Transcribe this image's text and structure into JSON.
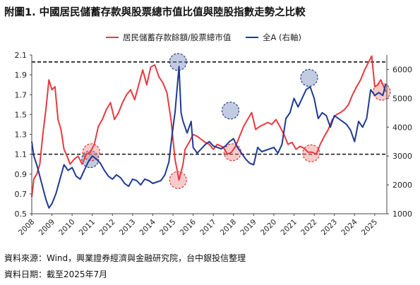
{
  "title": "附圖1. 中國居民儲蓄存款與股票總市值比值與陸股指數走勢之比較",
  "footnote_source": "資料來源：Wind，興業證券經濟與金融研究院，台中銀投信整理",
  "footnote_date": "資料日期：截至2025年7月",
  "chart_data": {
    "type": "line",
    "x_labels": [
      "2008",
      "2009",
      "2010",
      "2011",
      "2012",
      "2013",
      "2014",
      "2015",
      "2016",
      "2017",
      "2018",
      "2019",
      "2020",
      "2021",
      "2022",
      "2023",
      "2024",
      "2025"
    ],
    "x_range": [
      2008.0,
      2025.6
    ],
    "left_axis": {
      "ticks": [
        "0.5",
        "0.7",
        "0.9",
        "1.1",
        "1.3",
        "1.5",
        "1.7",
        "1.9",
        "2.1"
      ],
      "min": 0.5,
      "max": 2.1
    },
    "right_axis": {
      "ticks": [
        "1000",
        "2000",
        "3000",
        "4000",
        "5000",
        "6000"
      ],
      "min": 1000,
      "max": 6500
    },
    "reference_lines": [
      2.03,
      1.1
    ],
    "series": [
      {
        "name": "居民儲蓄存款餘額/股票總市值",
        "axis": "left",
        "color": "#e8393f",
        "points": [
          [
            2008.0,
            0.67
          ],
          [
            2008.1,
            0.85
          ],
          [
            2008.25,
            0.9
          ],
          [
            2008.4,
            1.0
          ],
          [
            2008.55,
            1.3
          ],
          [
            2008.7,
            1.55
          ],
          [
            2008.85,
            1.85
          ],
          [
            2009.0,
            1.75
          ],
          [
            2009.15,
            1.78
          ],
          [
            2009.3,
            1.45
          ],
          [
            2009.45,
            1.35
          ],
          [
            2009.6,
            1.15
          ],
          [
            2009.75,
            1.08
          ],
          [
            2009.9,
            1.0
          ],
          [
            2010.1,
            1.05
          ],
          [
            2010.3,
            1.08
          ],
          [
            2010.5,
            1.0
          ],
          [
            2010.7,
            1.1
          ],
          [
            2010.9,
            1.12
          ],
          [
            2011.1,
            1.2
          ],
          [
            2011.3,
            1.38
          ],
          [
            2011.5,
            1.45
          ],
          [
            2011.7,
            1.55
          ],
          [
            2011.9,
            1.62
          ],
          [
            2012.1,
            1.45
          ],
          [
            2012.3,
            1.52
          ],
          [
            2012.5,
            1.62
          ],
          [
            2012.7,
            1.7
          ],
          [
            2012.9,
            1.75
          ],
          [
            2013.1,
            1.65
          ],
          [
            2013.3,
            1.8
          ],
          [
            2013.5,
            1.95
          ],
          [
            2013.7,
            1.8
          ],
          [
            2013.9,
            1.98
          ],
          [
            2014.1,
            2.0
          ],
          [
            2014.3,
            1.88
          ],
          [
            2014.5,
            1.82
          ],
          [
            2014.7,
            1.72
          ],
          [
            2014.9,
            1.45
          ],
          [
            2015.0,
            1.25
          ],
          [
            2015.1,
            1.05
          ],
          [
            2015.3,
            0.84
          ],
          [
            2015.5,
            1.0
          ],
          [
            2015.6,
            1.15
          ],
          [
            2015.8,
            1.22
          ],
          [
            2016.0,
            1.3
          ],
          [
            2016.2,
            1.28
          ],
          [
            2016.4,
            1.25
          ],
          [
            2016.6,
            1.22
          ],
          [
            2016.8,
            1.2
          ],
          [
            2017.0,
            1.15
          ],
          [
            2017.2,
            1.2
          ],
          [
            2017.5,
            1.17
          ],
          [
            2017.7,
            1.1
          ],
          [
            2017.9,
            1.12
          ],
          [
            2018.1,
            1.18
          ],
          [
            2018.3,
            1.28
          ],
          [
            2018.5,
            1.38
          ],
          [
            2018.7,
            1.45
          ],
          [
            2018.9,
            1.52
          ],
          [
            2019.1,
            1.35
          ],
          [
            2019.3,
            1.38
          ],
          [
            2019.5,
            1.4
          ],
          [
            2019.7,
            1.42
          ],
          [
            2019.9,
            1.4
          ],
          [
            2020.1,
            1.45
          ],
          [
            2020.3,
            1.38
          ],
          [
            2020.5,
            1.3
          ],
          [
            2020.7,
            1.2
          ],
          [
            2020.9,
            1.22
          ],
          [
            2021.1,
            1.15
          ],
          [
            2021.3,
            1.18
          ],
          [
            2021.5,
            1.16
          ],
          [
            2021.7,
            1.12
          ],
          [
            2021.9,
            1.12
          ],
          [
            2022.1,
            1.1
          ],
          [
            2022.3,
            1.2
          ],
          [
            2022.5,
            1.28
          ],
          [
            2022.7,
            1.35
          ],
          [
            2022.9,
            1.45
          ],
          [
            2023.1,
            1.5
          ],
          [
            2023.3,
            1.52
          ],
          [
            2023.5,
            1.55
          ],
          [
            2023.7,
            1.6
          ],
          [
            2023.9,
            1.7
          ],
          [
            2024.1,
            1.78
          ],
          [
            2024.3,
            1.85
          ],
          [
            2024.5,
            1.95
          ],
          [
            2024.7,
            2.03
          ],
          [
            2024.85,
            2.09
          ],
          [
            2025.0,
            1.78
          ],
          [
            2025.15,
            1.8
          ],
          [
            2025.3,
            1.85
          ],
          [
            2025.45,
            1.78
          ],
          [
            2025.55,
            1.73
          ]
        ]
      },
      {
        "name": "全A (右軸)",
        "axis": "right",
        "color": "#1f3a93",
        "points": [
          [
            2008.0,
            3500
          ],
          [
            2008.1,
            3000
          ],
          [
            2008.25,
            2700
          ],
          [
            2008.4,
            2300
          ],
          [
            2008.55,
            1900
          ],
          [
            2008.7,
            1500
          ],
          [
            2008.85,
            1200
          ],
          [
            2009.0,
            1350
          ],
          [
            2009.2,
            1700
          ],
          [
            2009.4,
            2200
          ],
          [
            2009.6,
            2700
          ],
          [
            2009.8,
            2500
          ],
          [
            2010.0,
            2600
          ],
          [
            2010.2,
            2300
          ],
          [
            2010.4,
            2200
          ],
          [
            2010.6,
            2500
          ],
          [
            2010.8,
            2800
          ],
          [
            2011.0,
            3000
          ],
          [
            2011.2,
            2900
          ],
          [
            2011.4,
            2750
          ],
          [
            2011.6,
            2500
          ],
          [
            2011.8,
            2300
          ],
          [
            2012.0,
            2200
          ],
          [
            2012.2,
            2350
          ],
          [
            2012.4,
            2250
          ],
          [
            2012.6,
            2050
          ],
          [
            2012.8,
            1950
          ],
          [
            2013.0,
            2200
          ],
          [
            2013.2,
            2150
          ],
          [
            2013.4,
            2000
          ],
          [
            2013.6,
            2200
          ],
          [
            2013.8,
            2150
          ],
          [
            2014.0,
            2050
          ],
          [
            2014.2,
            2100
          ],
          [
            2014.4,
            2150
          ],
          [
            2014.6,
            2350
          ],
          [
            2014.8,
            2800
          ],
          [
            2014.95,
            3700
          ],
          [
            2015.1,
            4500
          ],
          [
            2015.3,
            6100
          ],
          [
            2015.4,
            4500
          ],
          [
            2015.5,
            4200
          ],
          [
            2015.7,
            3800
          ],
          [
            2015.9,
            4200
          ],
          [
            2016.0,
            3300
          ],
          [
            2016.2,
            3100
          ],
          [
            2016.4,
            3250
          ],
          [
            2016.6,
            3400
          ],
          [
            2016.8,
            3500
          ],
          [
            2017.0,
            3350
          ],
          [
            2017.2,
            3300
          ],
          [
            2017.4,
            3250
          ],
          [
            2017.6,
            3350
          ],
          [
            2017.8,
            3500
          ],
          [
            2018.0,
            3600
          ],
          [
            2018.2,
            3300
          ],
          [
            2018.4,
            3100
          ],
          [
            2018.6,
            2900
          ],
          [
            2018.8,
            2750
          ],
          [
            2019.0,
            2700
          ],
          [
            2019.2,
            3300
          ],
          [
            2019.4,
            3150
          ],
          [
            2019.6,
            3200
          ],
          [
            2019.8,
            3250
          ],
          [
            2020.0,
            3300
          ],
          [
            2020.2,
            3100
          ],
          [
            2020.4,
            3400
          ],
          [
            2020.6,
            4300
          ],
          [
            2020.8,
            4500
          ],
          [
            2021.0,
            5000
          ],
          [
            2021.2,
            4700
          ],
          [
            2021.4,
            5000
          ],
          [
            2021.6,
            5300
          ],
          [
            2021.8,
            5400
          ],
          [
            2022.0,
            5000
          ],
          [
            2022.2,
            4300
          ],
          [
            2022.4,
            4500
          ],
          [
            2022.6,
            4400
          ],
          [
            2022.8,
            4000
          ],
          [
            2023.0,
            4400
          ],
          [
            2023.2,
            4300
          ],
          [
            2023.4,
            4200
          ],
          [
            2023.6,
            4100
          ],
          [
            2023.8,
            3900
          ],
          [
            2024.0,
            3500
          ],
          [
            2024.2,
            4200
          ],
          [
            2024.4,
            4000
          ],
          [
            2024.6,
            4300
          ],
          [
            2024.8,
            5300
          ],
          [
            2025.0,
            5100
          ],
          [
            2025.2,
            5200
          ],
          [
            2025.4,
            5100
          ],
          [
            2025.55,
            5500
          ]
        ]
      }
    ],
    "highlight_markers": [
      {
        "x": 2010.9,
        "y": 1.05,
        "axis": "left",
        "series": "全A (右軸)",
        "color": "#1f3a93"
      },
      {
        "x": 2010.95,
        "y": 1.12,
        "axis": "left",
        "series": "居民儲蓄存款餘額/股票總市值",
        "color": "#e8393f"
      },
      {
        "x": 2015.25,
        "y": 2.03,
        "axis": "left",
        "series": "全A (右軸)",
        "color": "#1f3a93"
      },
      {
        "x": 2015.25,
        "y": 0.84,
        "axis": "left",
        "series": "居民儲蓄存款餘額/股票總市值",
        "color": "#e8393f"
      },
      {
        "x": 2017.85,
        "y": 1.54,
        "axis": "left",
        "series": "全A (右軸)",
        "color": "#1f3a93"
      },
      {
        "x": 2017.95,
        "y": 1.12,
        "axis": "left",
        "series": "居民儲蓄存款餘額/股票總市值",
        "color": "#e8393f"
      },
      {
        "x": 2021.75,
        "y": 1.87,
        "axis": "left",
        "series": "全A (右軸)",
        "color": "#1f3a93"
      },
      {
        "x": 2021.85,
        "y": 1.11,
        "axis": "left",
        "series": "居民儲蓄存款餘額/股票總市值",
        "color": "#e8393f"
      },
      {
        "x": 2025.35,
        "y": 1.73,
        "axis": "left",
        "series": "居民儲蓄存款餘額/股票總市值",
        "color": "#e8393f"
      }
    ],
    "legend_position": "top"
  },
  "legend": [
    {
      "label": "居民儲蓄存款餘額/股票總市值",
      "color": "#e8393f"
    },
    {
      "label": "全A (右軸)",
      "color": "#1f3a93"
    }
  ]
}
